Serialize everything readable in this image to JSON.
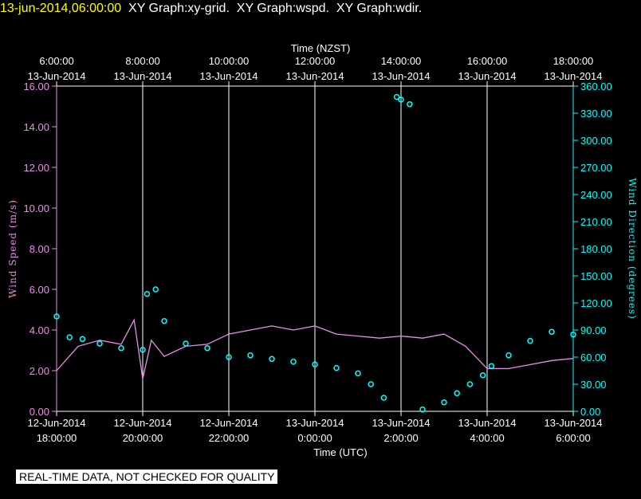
{
  "header": {
    "timestamp": "13-jun-2014,06:00:00",
    "graphs": "XY Graph:xy-grid.  XY Graph:wspd.  XY Graph:wdir."
  },
  "notice": "REAL-TIME DATA, NOT CHECKED FOR QUALITY",
  "chart_data": {
    "type": "line",
    "x_range_hours": [
      0,
      12
    ],
    "top_axis": {
      "label": "Time (NZST)",
      "ticks": [
        {
          "hour": 0,
          "time": "6:00:00",
          "date": "13-Jun-2014"
        },
        {
          "hour": 2,
          "time": "8:00:00",
          "date": "13-Jun-2014"
        },
        {
          "hour": 4,
          "time": "10:00:00",
          "date": "13-Jun-2014"
        },
        {
          "hour": 6,
          "time": "12:00:00",
          "date": "13-Jun-2014"
        },
        {
          "hour": 8,
          "time": "14:00:00",
          "date": "13-Jun-2014"
        },
        {
          "hour": 10,
          "time": "16:00:00",
          "date": "13-Jun-2014"
        },
        {
          "hour": 12,
          "time": "18:00:00",
          "date": "13-Jun-2014"
        }
      ]
    },
    "bottom_axis": {
      "label": "Time (UTC)",
      "ticks": [
        {
          "hour": 0,
          "date": "12-Jun-2014",
          "time": "18:00:00"
        },
        {
          "hour": 2,
          "date": "12-Jun-2014",
          "time": "20:00:00"
        },
        {
          "hour": 4,
          "date": "12-Jun-2014",
          "time": "22:00:00"
        },
        {
          "hour": 6,
          "date": "13-Jun-2014",
          "time": "0:00:00"
        },
        {
          "hour": 8,
          "date": "13-Jun-2014",
          "time": "2:00:00"
        },
        {
          "hour": 10,
          "date": "13-Jun-2014",
          "time": "4:00:00"
        },
        {
          "hour": 12,
          "date": "13-Jun-2014",
          "time": "6:00:00"
        }
      ]
    },
    "left_axis": {
      "label": "Wind Speed (m/s)",
      "range": [
        0,
        16
      ],
      "ticks": [
        "0.00",
        "2.00",
        "4.00",
        "6.00",
        "8.00",
        "10.00",
        "12.00",
        "14.00",
        "16.00"
      ]
    },
    "right_axis": {
      "label": "Wind Direction (degrees)",
      "range": [
        0,
        360
      ],
      "ticks": [
        "0.00",
        "30.00",
        "60.00",
        "90.00",
        "120.00",
        "150.00",
        "180.00",
        "210.00",
        "240.00",
        "270.00",
        "300.00",
        "330.00",
        "360.00"
      ]
    },
    "grid": "vertical",
    "series": [
      {
        "name": "wspd",
        "axis": "left",
        "style": "line",
        "x": [
          0,
          0.5,
          1,
          1.5,
          1.8,
          2,
          2.2,
          2.5,
          3,
          3.5,
          4,
          4.5,
          5,
          5.5,
          6,
          6.5,
          7,
          7.5,
          8,
          8.5,
          9,
          9.5,
          10,
          10.5,
          11,
          11.5,
          12
        ],
        "y": [
          2.0,
          3.2,
          3.5,
          3.3,
          4.5,
          1.6,
          3.5,
          2.7,
          3.2,
          3.3,
          3.8,
          4.0,
          4.2,
          4.0,
          4.2,
          3.8,
          3.7,
          3.6,
          3.7,
          3.6,
          3.8,
          3.2,
          2.1,
          2.1,
          2.3,
          2.5,
          2.6
        ]
      },
      {
        "name": "wdir",
        "axis": "right",
        "style": "markers",
        "x": [
          0,
          0.3,
          0.6,
          1,
          1.5,
          2,
          2.1,
          2.3,
          2.5,
          3,
          3.5,
          4,
          4.5,
          5,
          5.5,
          6,
          6.5,
          7,
          7.3,
          7.6,
          7.9,
          8,
          8.2,
          8.5,
          9,
          9.3,
          9.6,
          9.9,
          10.1,
          10.5,
          11,
          11.5,
          12
        ],
        "y": [
          105,
          82,
          80,
          75,
          70,
          68,
          130,
          135,
          100,
          75,
          70,
          60,
          62,
          58,
          55,
          52,
          48,
          42,
          30,
          15,
          348,
          345,
          340,
          2,
          10,
          20,
          30,
          40,
          50,
          62,
          78,
          88,
          85
        ]
      }
    ]
  }
}
